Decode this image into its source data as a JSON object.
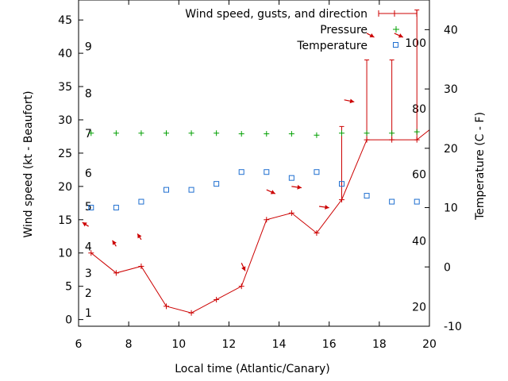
{
  "chart_data": {
    "type": "line",
    "xlabel": "Local time (Atlantic/Canary)",
    "ylabel": "Wind speed (kt - Beaufort)",
    "y2label": "Temperature (C - F)",
    "xlim": [
      6,
      20
    ],
    "ylim": [
      -1,
      48
    ],
    "y2lim": [
      -10,
      45
    ],
    "x_ticks": [
      6,
      8,
      10,
      12,
      14,
      16,
      18,
      20
    ],
    "y_ticks": [
      0,
      5,
      10,
      15,
      20,
      25,
      30,
      35,
      40,
      45
    ],
    "y2_ticks": [
      -10,
      0,
      10,
      20,
      30,
      40
    ],
    "beaufort_labels": [
      {
        "label": "1",
        "y": 1
      },
      {
        "label": "2",
        "y": 4
      },
      {
        "label": "3",
        "y": 7
      },
      {
        "label": "4",
        "y": 11
      },
      {
        "label": "5",
        "y": 17
      },
      {
        "label": "6",
        "y": 22
      },
      {
        "label": "7",
        "y": 28
      },
      {
        "label": "9",
        "y": 41
      },
      {
        "label": "8",
        "y": 34
      }
    ],
    "fahrenheit_labels": [
      {
        "label": "20",
        "y2": -6.7
      },
      {
        "label": "40",
        "y2": 4.4
      },
      {
        "label": "60",
        "y2": 15.6
      },
      {
        "label": "80",
        "y2": 26.7
      },
      {
        "label": "100",
        "y2": 37.8
      }
    ],
    "legend": {
      "position": "top-right",
      "entries": [
        "Wind speed, gusts, and direction",
        "Pressure",
        "Temperature"
      ]
    },
    "series": [
      {
        "name": "Wind speed, gusts, and direction",
        "color": "#cc0000",
        "points": [
          {
            "x": 6.5,
            "y": 10
          },
          {
            "x": 7.5,
            "y": 7
          },
          {
            "x": 8.5,
            "y": 8
          },
          {
            "x": 9.5,
            "y": 2
          },
          {
            "x": 10.5,
            "y": 1
          },
          {
            "x": 11.5,
            "y": 3
          },
          {
            "x": 12.5,
            "y": 5
          },
          {
            "x": 13.5,
            "y": 15
          },
          {
            "x": 14.5,
            "y": 16
          },
          {
            "x": 15.5,
            "y": 13
          },
          {
            "x": 16.5,
            "y": 18
          },
          {
            "x": 17.5,
            "y": 27
          },
          {
            "x": 18.5,
            "y": 27
          },
          {
            "x": 19.5,
            "y": 27
          },
          {
            "x": 20,
            "y": 28.5
          }
        ],
        "gusts": [
          {
            "x": 16.5,
            "y": 29
          },
          {
            "x": 17.5,
            "y": 39
          },
          {
            "x": 18.5,
            "y": 39
          },
          {
            "x": 19.5,
            "y": 46.5
          }
        ],
        "direction_arrows": [
          {
            "x": 6.4,
            "y": 14.0,
            "dx": -0.25,
            "dy": 0.6
          },
          {
            "x": 7.5,
            "y": 11.0,
            "dx": -0.15,
            "dy": 0.9
          },
          {
            "x": 8.5,
            "y": 12.0,
            "dx": -0.15,
            "dy": 0.9
          },
          {
            "x": 12.5,
            "y": 8.5,
            "dx": 0.15,
            "dy": -1.2
          },
          {
            "x": 13.5,
            "y": 19.5,
            "dx": 0.35,
            "dy": -0.6
          },
          {
            "x": 14.5,
            "y": 20.0,
            "dx": 0.4,
            "dy": -0.2
          },
          {
            "x": 15.6,
            "y": 17.0,
            "dx": 0.4,
            "dy": -0.2
          },
          {
            "x": 16.6,
            "y": 33.0,
            "dx": 0.4,
            "dy": -0.3
          },
          {
            "x": 17.5,
            "y": 43.0,
            "dx": 0.3,
            "dy": -0.6
          },
          {
            "x": 18.6,
            "y": 43.0,
            "dx": 0.35,
            "dy": -0.6
          }
        ]
      },
      {
        "name": "Pressure",
        "color": "#00a000",
        "marker": "plus",
        "points": [
          {
            "x": 6.5,
            "y": 28.0
          },
          {
            "x": 7.5,
            "y": 28.0
          },
          {
            "x": 8.5,
            "y": 28.0
          },
          {
            "x": 9.5,
            "y": 28.0
          },
          {
            "x": 10.5,
            "y": 28.0
          },
          {
            "x": 11.5,
            "y": 28.0
          },
          {
            "x": 12.5,
            "y": 27.9
          },
          {
            "x": 13.5,
            "y": 27.9
          },
          {
            "x": 14.5,
            "y": 27.9
          },
          {
            "x": 15.5,
            "y": 27.7
          },
          {
            "x": 16.5,
            "y": 28.0
          },
          {
            "x": 17.5,
            "y": 28.0
          },
          {
            "x": 18.5,
            "y": 28.0
          },
          {
            "x": 19.5,
            "y": 28.2
          }
        ]
      },
      {
        "name": "Temperature",
        "color": "#1f6fd0",
        "marker": "square",
        "axis": "y2",
        "points": [
          {
            "x": 6.5,
            "y2": 10
          },
          {
            "x": 7.5,
            "y2": 10
          },
          {
            "x": 8.5,
            "y2": 11
          },
          {
            "x": 9.5,
            "y2": 13
          },
          {
            "x": 10.5,
            "y2": 13
          },
          {
            "x": 11.5,
            "y2": 14
          },
          {
            "x": 12.5,
            "y2": 16
          },
          {
            "x": 13.5,
            "y2": 16
          },
          {
            "x": 14.5,
            "y2": 15
          },
          {
            "x": 15.5,
            "y2": 16
          },
          {
            "x": 16.5,
            "y2": 14
          },
          {
            "x": 17.5,
            "y2": 12
          },
          {
            "x": 18.5,
            "y2": 11
          },
          {
            "x": 19.5,
            "y2": 11
          }
        ]
      }
    ]
  }
}
